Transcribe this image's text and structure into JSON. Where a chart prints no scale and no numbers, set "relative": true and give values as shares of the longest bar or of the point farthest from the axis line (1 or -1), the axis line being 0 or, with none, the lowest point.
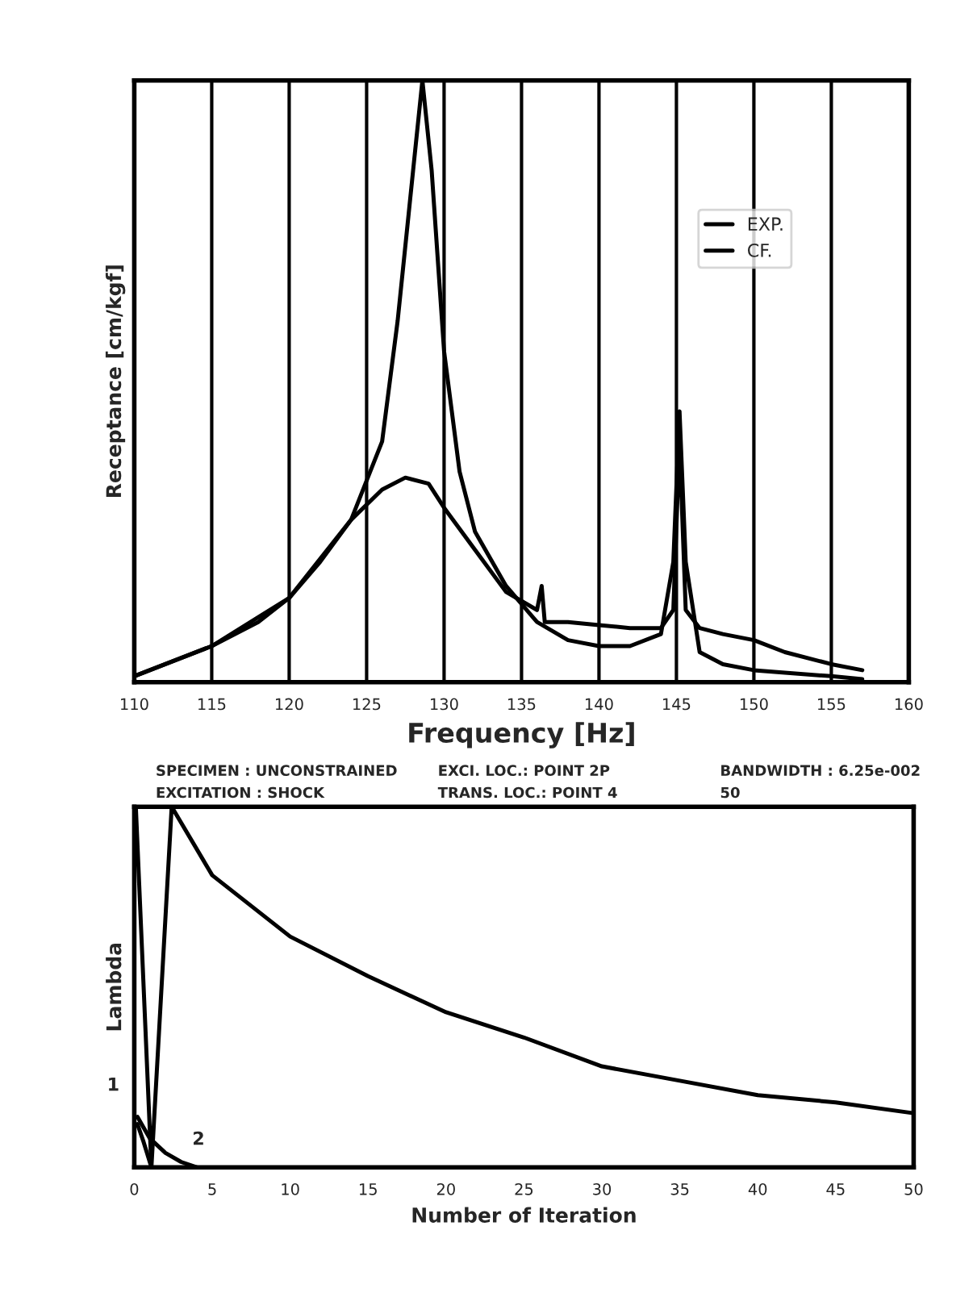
{
  "chart_data": [
    {
      "type": "line",
      "xlabel": "Frequency [Hz]",
      "ylabel": "Receptance [cm/kgf]",
      "relative": true,
      "xlim": [
        110,
        160
      ],
      "xticks": [
        110,
        115,
        120,
        125,
        130,
        135,
        140,
        145,
        150,
        155,
        160
      ],
      "grid": true,
      "legend": "top right",
      "series": [
        {
          "name": "EXP.",
          "color": "#000000",
          "x": [
            110,
            112,
            115,
            118,
            120,
            122,
            124,
            126,
            127.5,
            129,
            130,
            132,
            134,
            136,
            136.3,
            136.5,
            138,
            140,
            142,
            144,
            144.8,
            145.2,
            145.6,
            146.5,
            148,
            150,
            152,
            155,
            157
          ],
          "values": [
            0.01,
            0.03,
            0.06,
            0.1,
            0.14,
            0.2,
            0.27,
            0.32,
            0.34,
            0.33,
            0.29,
            0.22,
            0.15,
            0.12,
            0.16,
            0.1,
            0.1,
            0.095,
            0.09,
            0.09,
            0.12,
            0.4,
            0.12,
            0.09,
            0.08,
            0.07,
            0.05,
            0.03,
            0.02
          ]
        },
        {
          "name": "CF.",
          "color": "#000000",
          "x": [
            110,
            115,
            120,
            124,
            126,
            127,
            128,
            128.6,
            129.2,
            130,
            131,
            132,
            134,
            136,
            138,
            140,
            142,
            144,
            144.8,
            145.2,
            145.6,
            146.5,
            148,
            150,
            155,
            157
          ],
          "values": [
            0.01,
            0.06,
            0.14,
            0.27,
            0.4,
            0.6,
            0.85,
            1.0,
            0.85,
            0.55,
            0.35,
            0.25,
            0.16,
            0.1,
            0.07,
            0.06,
            0.06,
            0.08,
            0.2,
            0.45,
            0.2,
            0.05,
            0.03,
            0.02,
            0.01,
            0.005
          ]
        }
      ]
    },
    {
      "type": "line",
      "xlabel": "Number of Iteration",
      "ylabel": "Lambda",
      "relative": true,
      "xlim": [
        0,
        50
      ],
      "xticks": [
        0,
        5,
        10,
        15,
        20,
        25,
        30,
        35,
        40,
        45,
        50
      ],
      "grid": false,
      "annotations": [
        "SPECIMEN : UNCONSTRAINED",
        "EXCITATION : SHOCK",
        "EXCI. LOC.: POINT 2P",
        "TRANS. LOC.: POINT 4",
        "BANDWIDTH : 6.25e-002",
        "50",
        {
          "text": "1",
          "x": 0.2,
          "y": 0.14
        },
        {
          "text": "2",
          "x": 3,
          "y": 0.015
        }
      ],
      "series": [
        {
          "color": "#000000",
          "x": [
            0.1,
            1.1,
            2.4,
            5,
            10,
            15,
            20,
            25,
            30,
            35,
            40,
            45,
            50
          ],
          "values": [
            1.0,
            0.0,
            1.0,
            0.81,
            0.64,
            0.53,
            0.43,
            0.36,
            0.28,
            0.24,
            0.2,
            0.18,
            0.15
          ]
        },
        {
          "color": "#000000",
          "x": [
            0.2,
            1,
            2,
            3,
            4
          ],
          "values": [
            0.14,
            0.08,
            0.04,
            0.015,
            0.0
          ]
        },
        {
          "color": "#000000",
          "x": [
            0.2,
            0.6,
            1.1
          ],
          "values": [
            0.12,
            0.07,
            0.0
          ]
        }
      ]
    }
  ]
}
